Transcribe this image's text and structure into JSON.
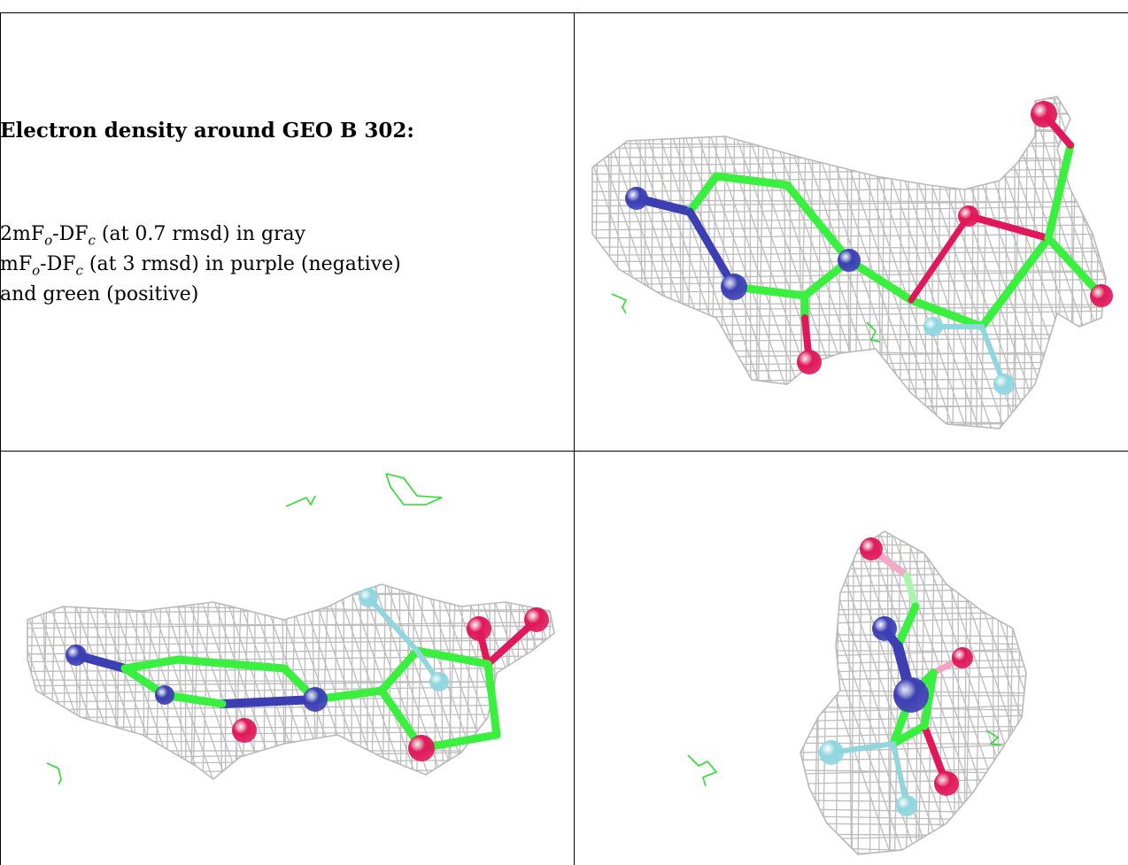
{
  "caption": {
    "title": "Electron density around GEO B 302:",
    "line1": [
      "2mF",
      "o",
      "-DF",
      "c",
      " (at 0.7 rmsd) in gray"
    ],
    "line2": [
      "mF",
      "o",
      "-DF",
      "c",
      " (at 3 rmsd) in purple (negative)"
    ],
    "line3": "and green (positive)"
  },
  "colors": {
    "mesh": "#b9b9b9",
    "carbon": "#39f03f",
    "nitrogen": "#3c3fb4",
    "oxygen": "#e0185a",
    "fluorine": "#8fd6df",
    "positive_density": "#2ddc2d"
  },
  "panels": [
    {
      "name": "view-top-right",
      "description_hidden": true
    },
    {
      "name": "view-bottom-left",
      "description_hidden": true
    },
    {
      "name": "view-bottom-right",
      "description_hidden": true
    }
  ]
}
